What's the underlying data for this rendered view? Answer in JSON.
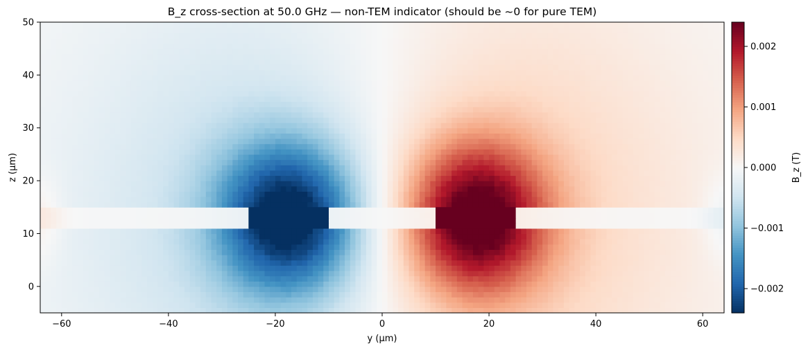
{
  "chart_data": {
    "type": "heatmap",
    "title": "B_z cross-section at 50.0 GHz — non-TEM indicator (should be ~0 for pure TEM)",
    "xlabel": "y (µm)",
    "ylabel": "z (µm)",
    "xlim": [
      -64,
      64
    ],
    "ylim": [
      -5,
      50
    ],
    "xticks": [
      -60,
      -40,
      -20,
      0,
      20,
      40,
      60
    ],
    "xtick_labels": [
      "−60",
      "−40",
      "−20",
      "0",
      "20",
      "40",
      "60"
    ],
    "yticks": [
      0,
      10,
      20,
      30,
      40,
      50
    ],
    "ytick_labels": [
      "0",
      "10",
      "20",
      "30",
      "40",
      "50"
    ],
    "colorbar": {
      "label": "B_z (T)",
      "range": [
        -0.0024,
        0.0024
      ],
      "ticks": [
        -0.002,
        -0.001,
        0.0,
        0.001,
        0.002
      ],
      "tick_labels": [
        "−0.002",
        "−0.001",
        "0.000",
        "0.001",
        "0.002"
      ],
      "colormap": "RdBu_r",
      "colors": [
        "#053061",
        "#2166ac",
        "#4393c3",
        "#92c5de",
        "#d1e5f0",
        "#f7f7f7",
        "#fddbc7",
        "#f4a582",
        "#d6604d",
        "#b2182b",
        "#67001f"
      ]
    },
    "features": [
      {
        "kind": "conductor",
        "y_range": [
          -25,
          -10
        ],
        "z_range": [
          11,
          15
        ],
        "value": -0.0024
      },
      {
        "kind": "conductor",
        "y_range": [
          10,
          25
        ],
        "z_range": [
          11,
          15
        ],
        "value": 0.0024
      }
    ],
    "grid": false
  }
}
